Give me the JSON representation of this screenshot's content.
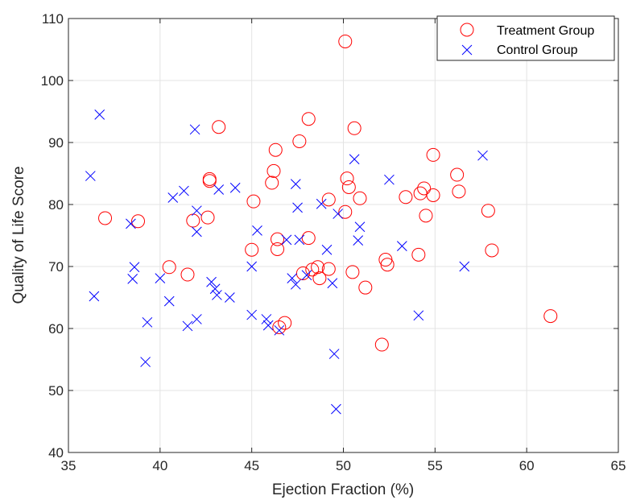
{
  "chart_data": {
    "type": "scatter",
    "xlabel": "Ejection Fraction (%)",
    "ylabel": "Quality of Life Score",
    "xlim": [
      35,
      65
    ],
    "ylim": [
      40,
      110
    ],
    "xticks": [
      "35",
      "40",
      "45",
      "50",
      "55",
      "60",
      "65"
    ],
    "yticks": [
      "40",
      "50",
      "60",
      "70",
      "80",
      "90",
      "100",
      "110"
    ],
    "grid": true,
    "legend_position": "top-right",
    "series": [
      {
        "name": "Treatment Group",
        "marker": "circle",
        "color": "#ff0000",
        "points": [
          [
            37.0,
            77.8
          ],
          [
            38.8,
            77.3
          ],
          [
            40.5,
            69.9
          ],
          [
            41.5,
            68.7
          ],
          [
            41.8,
            77.4
          ],
          [
            42.6,
            77.9
          ],
          [
            42.7,
            84.1
          ],
          [
            42.7,
            83.8
          ],
          [
            43.2,
            92.5
          ],
          [
            45.0,
            72.7
          ],
          [
            45.1,
            80.5
          ],
          [
            46.1,
            83.5
          ],
          [
            46.2,
            85.4
          ],
          [
            46.3,
            88.8
          ],
          [
            46.4,
            72.8
          ],
          [
            46.4,
            74.4
          ],
          [
            46.5,
            60.2
          ],
          [
            46.8,
            60.9
          ],
          [
            47.6,
            90.2
          ],
          [
            47.8,
            68.9
          ],
          [
            48.1,
            74.6
          ],
          [
            48.1,
            93.8
          ],
          [
            48.3,
            69.5
          ],
          [
            48.6,
            69.9
          ],
          [
            48.7,
            68.1
          ],
          [
            49.2,
            69.6
          ],
          [
            49.2,
            80.8
          ],
          [
            50.1,
            78.8
          ],
          [
            50.1,
            106.3
          ],
          [
            50.2,
            84.2
          ],
          [
            50.3,
            82.8
          ],
          [
            50.5,
            69.1
          ],
          [
            50.6,
            92.3
          ],
          [
            50.9,
            81.0
          ],
          [
            51.2,
            66.6
          ],
          [
            52.1,
            57.4
          ],
          [
            52.3,
            71.1
          ],
          [
            52.4,
            70.3
          ],
          [
            53.4,
            81.2
          ],
          [
            54.1,
            71.9
          ],
          [
            54.2,
            81.8
          ],
          [
            54.4,
            82.6
          ],
          [
            54.5,
            78.2
          ],
          [
            54.9,
            88.0
          ],
          [
            54.9,
            81.5
          ],
          [
            56.2,
            84.8
          ],
          [
            56.3,
            82.1
          ],
          [
            57.9,
            79.0
          ],
          [
            58.1,
            72.6
          ],
          [
            61.3,
            62.0
          ]
        ]
      },
      {
        "name": "Control Group",
        "marker": "x",
        "color": "#0000ff",
        "points": [
          [
            36.2,
            84.6
          ],
          [
            36.4,
            65.2
          ],
          [
            36.7,
            94.5
          ],
          [
            38.4,
            76.9
          ],
          [
            38.5,
            68.0
          ],
          [
            38.6,
            69.9
          ],
          [
            39.2,
            54.6
          ],
          [
            39.3,
            61.0
          ],
          [
            40.0,
            68.1
          ],
          [
            40.5,
            64.4
          ],
          [
            40.7,
            81.1
          ],
          [
            41.3,
            82.2
          ],
          [
            41.5,
            60.4
          ],
          [
            41.9,
            92.1
          ],
          [
            42.0,
            61.5
          ],
          [
            42.0,
            75.6
          ],
          [
            42.0,
            79.0
          ],
          [
            42.8,
            67.5
          ],
          [
            43.0,
            66.4
          ],
          [
            43.1,
            65.4
          ],
          [
            43.2,
            82.4
          ],
          [
            43.8,
            65.0
          ],
          [
            44.1,
            82.7
          ],
          [
            45.0,
            70.0
          ],
          [
            45.0,
            62.2
          ],
          [
            45.3,
            75.8
          ],
          [
            45.8,
            61.5
          ],
          [
            45.9,
            60.5
          ],
          [
            46.5,
            59.7
          ],
          [
            46.9,
            74.3
          ],
          [
            47.2,
            68.1
          ],
          [
            47.4,
            67.1
          ],
          [
            47.4,
            83.3
          ],
          [
            47.5,
            79.5
          ],
          [
            47.6,
            74.3
          ],
          [
            48.0,
            68.6
          ],
          [
            48.8,
            80.1
          ],
          [
            49.1,
            72.7
          ],
          [
            49.4,
            67.3
          ],
          [
            49.5,
            55.9
          ],
          [
            49.6,
            47.0
          ],
          [
            49.7,
            78.5
          ],
          [
            50.6,
            87.3
          ],
          [
            50.8,
            74.2
          ],
          [
            50.9,
            76.4
          ],
          [
            52.5,
            84.0
          ],
          [
            53.2,
            73.3
          ],
          [
            54.1,
            62.1
          ],
          [
            56.6,
            70.0
          ],
          [
            57.6,
            87.9
          ]
        ]
      }
    ]
  }
}
